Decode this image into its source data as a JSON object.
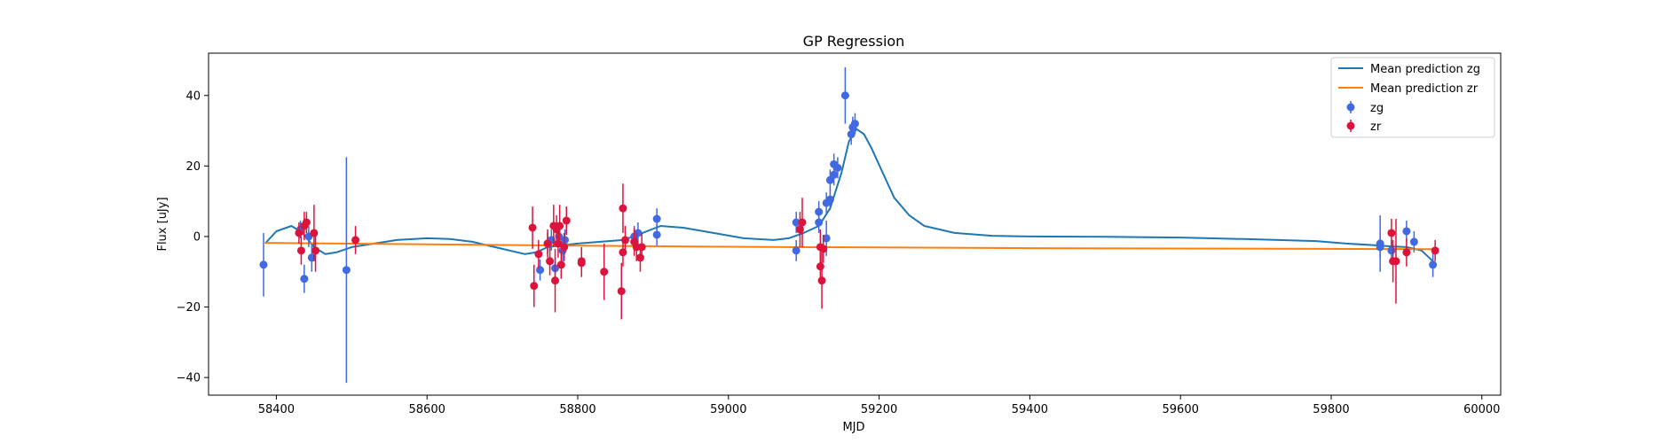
{
  "chart_data": {
    "type": "scatter",
    "title": "GP Regression",
    "xlabel": "MJD",
    "ylabel": "Flux [uJy]",
    "xlim": [
      58310,
      60025
    ],
    "ylim": [
      -45,
      52
    ],
    "xticks": [
      58400,
      58600,
      58800,
      59000,
      59200,
      59400,
      59600,
      59800,
      60000
    ],
    "yticks": [
      -40,
      -20,
      0,
      20,
      40
    ],
    "grid": false,
    "legend_position": "top-right",
    "lines": [
      {
        "name": "Mean prediction zg",
        "color": "#1f77b4",
        "points": [
          [
            58385,
            -2
          ],
          [
            58400,
            1.5
          ],
          [
            58420,
            3
          ],
          [
            58435,
            1
          ],
          [
            58450,
            -3
          ],
          [
            58465,
            -5
          ],
          [
            58480,
            -4.5
          ],
          [
            58500,
            -3
          ],
          [
            58530,
            -2
          ],
          [
            58560,
            -1
          ],
          [
            58600,
            -0.5
          ],
          [
            58630,
            -0.7
          ],
          [
            58660,
            -1.5
          ],
          [
            58700,
            -3.5
          ],
          [
            58730,
            -5
          ],
          [
            58745,
            -4.5
          ],
          [
            58760,
            -3
          ],
          [
            58780,
            -2.5
          ],
          [
            58800,
            -2
          ],
          [
            58830,
            -1.5
          ],
          [
            58860,
            -1
          ],
          [
            58880,
            0.5
          ],
          [
            58910,
            3
          ],
          [
            58940,
            2.5
          ],
          [
            58980,
            1
          ],
          [
            59020,
            -0.5
          ],
          [
            59060,
            -1
          ],
          [
            59080,
            -0.5
          ],
          [
            59100,
            1
          ],
          [
            59120,
            3
          ],
          [
            59135,
            8
          ],
          [
            59150,
            18
          ],
          [
            59160,
            27
          ],
          [
            59170,
            30.5
          ],
          [
            59180,
            29
          ],
          [
            59190,
            25
          ],
          [
            59205,
            18
          ],
          [
            59220,
            11
          ],
          [
            59240,
            6
          ],
          [
            59260,
            3
          ],
          [
            59300,
            1
          ],
          [
            59350,
            0.2
          ],
          [
            59400,
            0
          ],
          [
            59500,
            -0.1
          ],
          [
            59600,
            -0.3
          ],
          [
            59700,
            -0.8
          ],
          [
            59780,
            -1.3
          ],
          [
            59820,
            -2
          ],
          [
            59860,
            -2.5
          ],
          [
            59880,
            -2.8
          ],
          [
            59900,
            -3
          ],
          [
            59920,
            -4
          ],
          [
            59935,
            -7
          ]
        ]
      },
      {
        "name": "Mean prediction zr",
        "color": "#ff7f0e",
        "points": [
          [
            58385,
            -1.8
          ],
          [
            58600,
            -2.2
          ],
          [
            58800,
            -2.6
          ],
          [
            59000,
            -2.9
          ],
          [
            59200,
            -3.1
          ],
          [
            59400,
            -3.3
          ],
          [
            59600,
            -3.4
          ],
          [
            59800,
            -3.5
          ],
          [
            59935,
            -3.6
          ]
        ]
      }
    ],
    "series": [
      {
        "name": "zg",
        "color": "#4169e1",
        "points": [
          [
            58383,
            -8,
            9
          ],
          [
            58432,
            2,
            2.5
          ],
          [
            58437,
            -12,
            4
          ],
          [
            58443,
            0,
            3
          ],
          [
            58447,
            -6,
            4
          ],
          [
            58493,
            -9.5,
            32
          ],
          [
            58750,
            -9.5,
            3
          ],
          [
            58760,
            -2,
            3
          ],
          [
            58765,
            -1,
            3
          ],
          [
            58770,
            -9,
            3
          ],
          [
            58775,
            0,
            3
          ],
          [
            58780,
            -4,
            3
          ],
          [
            58783,
            -1,
            3
          ],
          [
            58875,
            0,
            3
          ],
          [
            58880,
            1,
            3
          ],
          [
            58905,
            5,
            3
          ],
          [
            58905,
            0.5,
            3
          ],
          [
            59090,
            4,
            3
          ],
          [
            59090,
            -4,
            3
          ],
          [
            59120,
            7,
            3
          ],
          [
            59120,
            4,
            3
          ],
          [
            59130,
            -0.5,
            5
          ],
          [
            59130,
            9.5,
            3
          ],
          [
            59135,
            16,
            3
          ],
          [
            59135,
            10.5,
            3
          ],
          [
            59140,
            17.5,
            3
          ],
          [
            59140,
            20.5,
            3
          ],
          [
            59145,
            19.5,
            3
          ],
          [
            59155,
            40,
            8
          ],
          [
            59163,
            29,
            3
          ],
          [
            59165,
            31,
            3
          ],
          [
            59168,
            32,
            3
          ],
          [
            59865,
            -2,
            8
          ],
          [
            59865,
            -3,
            3
          ],
          [
            59880,
            -4,
            3
          ],
          [
            59900,
            1.5,
            3
          ],
          [
            59910,
            -1.5,
            3
          ],
          [
            59935,
            -8,
            3.5
          ]
        ]
      },
      {
        "name": "zr",
        "color": "#dc143c",
        "points": [
          [
            58430,
            1,
            3
          ],
          [
            58433,
            -4,
            4
          ],
          [
            58437,
            3,
            4
          ],
          [
            58440,
            4,
            3
          ],
          [
            58450,
            1,
            8
          ],
          [
            58452,
            -4,
            6
          ],
          [
            58505,
            -1,
            4
          ],
          [
            58740,
            2.5,
            6
          ],
          [
            58742,
            -14,
            6
          ],
          [
            58748,
            -5,
            4
          ],
          [
            58760,
            -2,
            4
          ],
          [
            58763,
            -7,
            4
          ],
          [
            58768,
            3,
            6
          ],
          [
            58770,
            -12.5,
            9
          ],
          [
            58772,
            2,
            4
          ],
          [
            58774,
            -2,
            4
          ],
          [
            58776,
            3,
            6
          ],
          [
            58778,
            -8,
            4
          ],
          [
            58782,
            -3,
            4
          ],
          [
            58785,
            4.5,
            4
          ],
          [
            58805,
            -7,
            4
          ],
          [
            58805,
            -7.5,
            4
          ],
          [
            58835,
            -10,
            8
          ],
          [
            58858,
            -15.5,
            8
          ],
          [
            58860,
            8,
            7
          ],
          [
            58860,
            -4.5,
            4
          ],
          [
            58863,
            -1,
            4
          ],
          [
            58875,
            -1.5,
            4
          ],
          [
            58878,
            -3,
            4
          ],
          [
            58883,
            -6,
            4
          ],
          [
            58885,
            -3,
            4
          ],
          [
            59095,
            2,
            5
          ],
          [
            59098,
            4,
            7
          ],
          [
            59122,
            -3,
            5
          ],
          [
            59122,
            -8.5,
            4
          ],
          [
            59124,
            -12.5,
            8
          ],
          [
            59126,
            -3.5,
            4
          ],
          [
            59880,
            1,
            4
          ],
          [
            59882,
            -7,
            6
          ],
          [
            59886,
            -7,
            12
          ],
          [
            59900,
            -4.5,
            4
          ],
          [
            59938,
            -4,
            3
          ]
        ]
      }
    ]
  }
}
